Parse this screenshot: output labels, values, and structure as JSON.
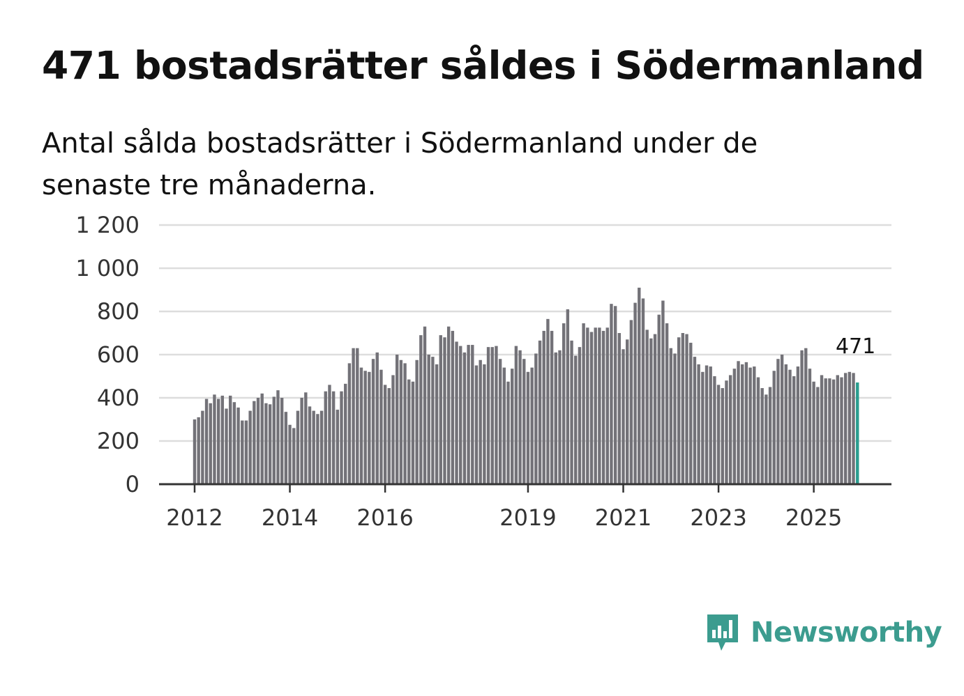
{
  "title": "471 bostadsrätter såldes i Södermanland",
  "subtitle": "Antal sålda bostadsrätter i Södermanland under de senaste tre månaderna.",
  "colors": {
    "bar": "#737278",
    "highlight": "#2a9d8f",
    "grid": "#dddddd",
    "axis": "#333333",
    "brand": "#3c9c8f"
  },
  "logo": {
    "text": "Newsworthy",
    "icon": "bar-chart-speech-bubble-icon"
  },
  "chart_data": {
    "type": "bar",
    "title": "471 bostadsrätter såldes i Södermanland",
    "xlabel": "",
    "ylabel": "",
    "ylim": [
      0,
      1200
    ],
    "yticks": [
      0,
      200,
      400,
      600,
      800,
      1000,
      1200
    ],
    "ytick_labels": [
      "0",
      "200",
      "400",
      "600",
      "800",
      "1 000",
      "1 200"
    ],
    "xticks": [
      {
        "label": "2012",
        "index": 0
      },
      {
        "label": "2014",
        "index": 24
      },
      {
        "label": "2016",
        "index": 48
      },
      {
        "label": "2019",
        "index": 84
      },
      {
        "label": "2021",
        "index": 108
      },
      {
        "label": "2023",
        "index": 132
      },
      {
        "label": "2025",
        "index": 156
      }
    ],
    "start": "2012-01",
    "highlight_last": true,
    "last_value_label": "471",
    "values": [
      300,
      310,
      340,
      395,
      375,
      415,
      395,
      410,
      350,
      410,
      380,
      355,
      295,
      295,
      340,
      385,
      400,
      420,
      375,
      370,
      405,
      435,
      400,
      335,
      275,
      260,
      340,
      400,
      425,
      360,
      340,
      325,
      340,
      430,
      460,
      430,
      345,
      430,
      465,
      560,
      630,
      630,
      540,
      525,
      520,
      580,
      610,
      530,
      460,
      445,
      505,
      600,
      575,
      560,
      485,
      475,
      575,
      690,
      730,
      600,
      590,
      555,
      690,
      680,
      730,
      710,
      660,
      640,
      610,
      645,
      645,
      550,
      575,
      555,
      635,
      635,
      640,
      580,
      540,
      475,
      535,
      640,
      620,
      580,
      520,
      540,
      605,
      665,
      710,
      765,
      710,
      610,
      620,
      745,
      810,
      665,
      595,
      635,
      745,
      725,
      705,
      725,
      725,
      710,
      725,
      835,
      825,
      700,
      625,
      670,
      760,
      840,
      910,
      860,
      715,
      675,
      695,
      785,
      850,
      745,
      630,
      605,
      680,
      700,
      695,
      655,
      590,
      555,
      520,
      550,
      545,
      500,
      460,
      445,
      480,
      505,
      535,
      570,
      555,
      565,
      540,
      545,
      495,
      445,
      415,
      450,
      525,
      580,
      600,
      555,
      530,
      500,
      545,
      620,
      630,
      535,
      475,
      450,
      505,
      490,
      490,
      485,
      505,
      495,
      515,
      520,
      515,
      471
    ]
  }
}
